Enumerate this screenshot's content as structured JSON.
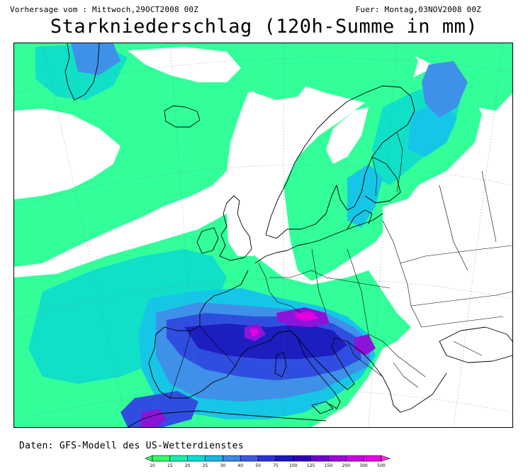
{
  "header": {
    "left": "Vorhersage vom : Mittwoch,29OCT2008 00Z",
    "right": "Fuer: Montag,03NOV2008 00Z",
    "title": "Starkniederschlag (120h-Summe in mm)"
  },
  "footer": {
    "credit": "Daten: GFS-Modell des US-Wetterdienstes"
  },
  "legend": {
    "ticks": [
      "10",
      "15",
      "20",
      "25",
      "30",
      "40",
      "50",
      "75",
      "100",
      "125",
      "150",
      "200",
      "300",
      "500"
    ],
    "colors": [
      "#33ff66",
      "#1aeeaa",
      "#00dfd3",
      "#18b7e6",
      "#3f87ea",
      "#3f57e4",
      "#2f2fd8",
      "#1d16c2",
      "#2b00b9",
      "#6e00cf",
      "#a000db",
      "#cc00e4",
      "#e900ea",
      "#ff2fe0"
    ]
  },
  "map": {
    "region": "Europe and North Atlantic",
    "colors": {
      "light": "#33ff9a",
      "teal": "#10e0c8",
      "cyan": "#16c6e6",
      "blue": "#3f90e8",
      "darkblue": "#2f4ee0",
      "navy": "#1d1ec0",
      "purple": "#8a14d8",
      "magenta": "#e000e0",
      "border": "#000000"
    }
  }
}
